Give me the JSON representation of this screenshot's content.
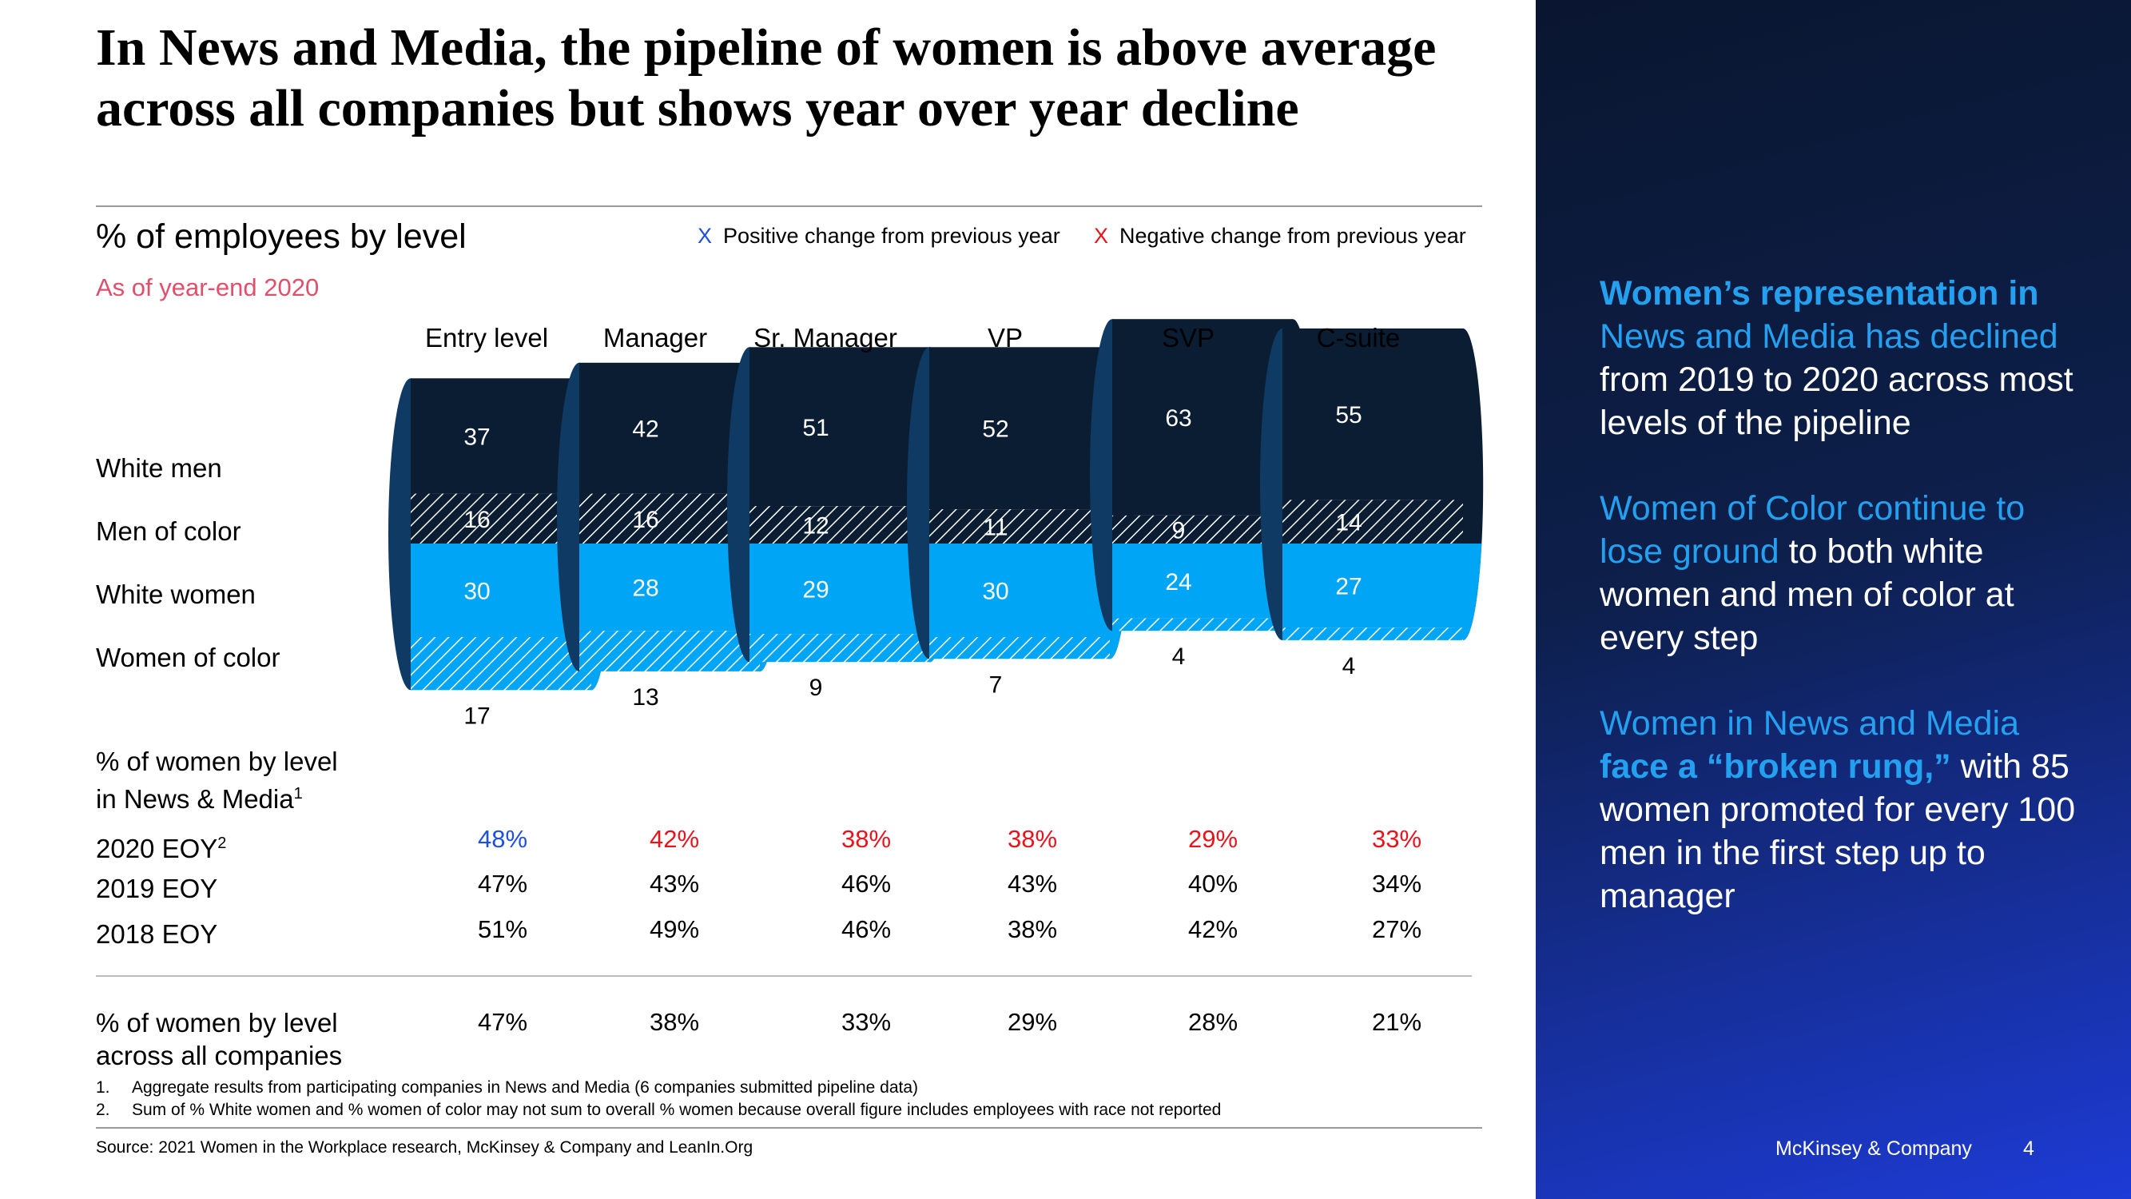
{
  "title": "In News and Media, the pipeline of women is above average across all companies but shows year over year decline",
  "subtitle": "% of employees by level",
  "as_of": "As of year-end 2020",
  "legend": {
    "positive": {
      "mark": "X",
      "label": "Positive change from previous year",
      "color": "#1f4fe0"
    },
    "negative": {
      "mark": "X",
      "label": "Negative change from previous year",
      "color": "#e8141c"
    }
  },
  "row_labels": [
    "White men",
    "Men of color",
    "White women",
    "Women of color"
  ],
  "bottom_labels": {
    "news_line1": "% of women by level",
    "news_line2": "in News & Media",
    "news_sup": "1",
    "y2020": "2020 EOY",
    "y2020_sup": "2",
    "y2019": "2019 EOY",
    "y2018": "2018 EOY",
    "all_line1": "% of women by level",
    "all_line2": "across all companies"
  },
  "chart_data": {
    "type": "bar",
    "stacked": true,
    "categories": [
      "Entry level",
      "Manager",
      "Sr. Manager",
      "VP",
      "SVP",
      "C-suite"
    ],
    "series": [
      {
        "name": "White men",
        "values": [
          37,
          42,
          51,
          52,
          63,
          55
        ],
        "color": "#0b1d33"
      },
      {
        "name": "Men of color",
        "values": [
          16,
          16,
          12,
          11,
          9,
          14
        ],
        "color": "#0b1d33"
      },
      {
        "name": "White women",
        "values": [
          30,
          28,
          29,
          30,
          24,
          27
        ],
        "color": "#00a6f5"
      },
      {
        "name": "Women of color",
        "values": [
          17,
          13,
          9,
          7,
          4,
          4
        ],
        "color": "#00a6f5"
      }
    ],
    "women_pct_news_media": {
      "2020 EOY": [
        "48%",
        "42%",
        "38%",
        "38%",
        "29%",
        "33%"
      ],
      "2019 EOY": [
        "47%",
        "43%",
        "46%",
        "43%",
        "40%",
        "34%"
      ],
      "2018 EOY": [
        "51%",
        "49%",
        "46%",
        "38%",
        "42%",
        "27%"
      ]
    },
    "change_2020": [
      "positive",
      "negative",
      "negative",
      "negative",
      "negative",
      "negative"
    ],
    "women_pct_all_companies": [
      "47%",
      "38%",
      "33%",
      "29%",
      "28%",
      "21%"
    ]
  },
  "footnotes": [
    {
      "num": "1.",
      "text": "Aggregate results from participating companies in News and Media (6 companies submitted pipeline data)"
    },
    {
      "num": "2.",
      "text": "Sum of % White women and % women of color may not sum to overall % women because overall figure includes employees with race not reported"
    }
  ],
  "source": "Source: 2021 Women in the Workplace research, McKinsey & Company and LeanIn.Org",
  "panel": {
    "p1": {
      "bold": "Women’s representation in",
      "hl": "News and Media has declined",
      "rest": " from 2019 to 2020 across most levels of the pipeline"
    },
    "p2": {
      "hl": "Women of Color continue to lose ground",
      "rest": " to both white women and men of color at every step"
    },
    "p3": {
      "hl": "Women in News and Media ",
      "bold": "face a “broken rung,”",
      "rest": " with 85 women promoted for every 100 men in the first step up to manager"
    }
  },
  "brand": "McKinsey & Company",
  "page_number": "4"
}
